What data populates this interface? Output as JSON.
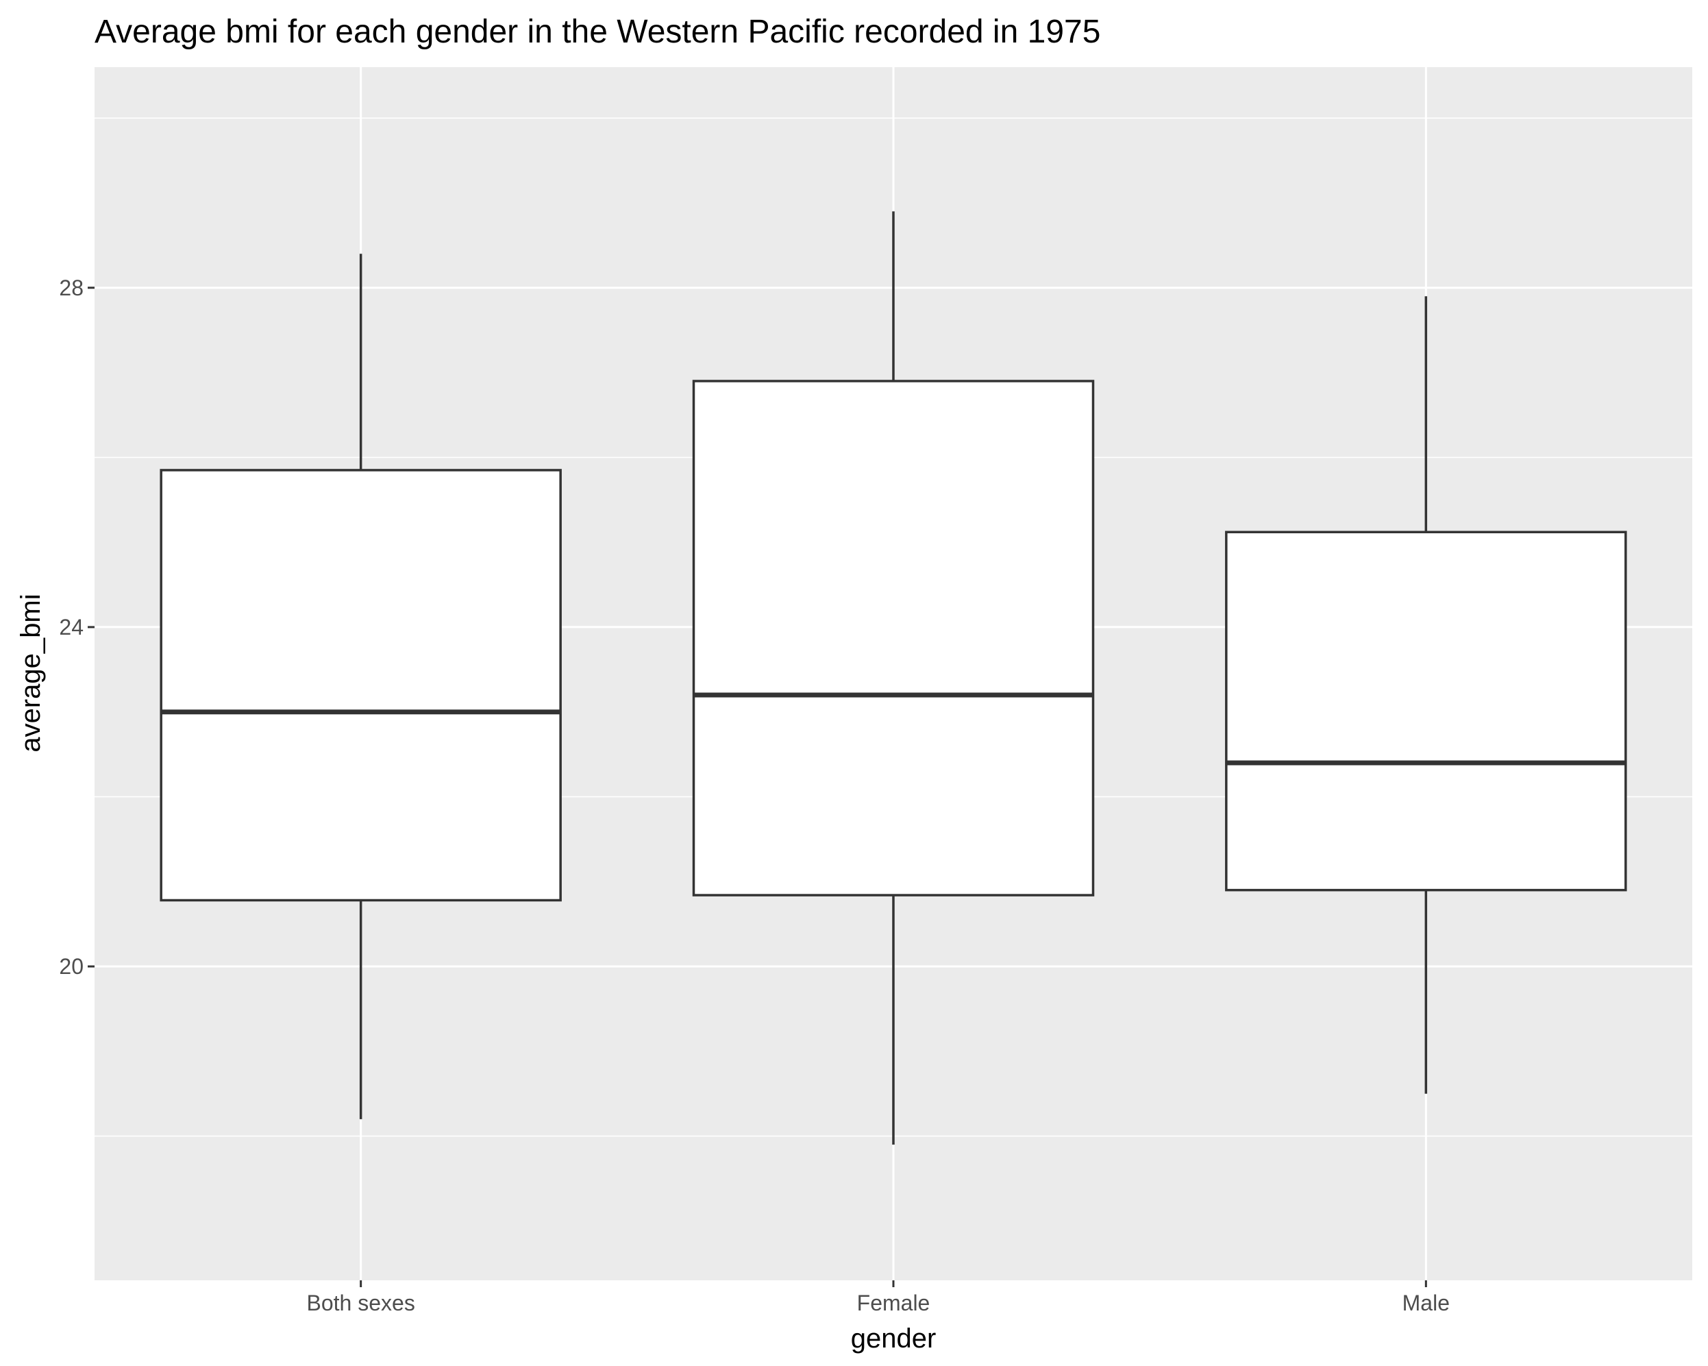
{
  "chart_data": {
    "type": "boxplot",
    "title": "Average bmi for each gender in the Western Pacific recorded in 1975",
    "xlabel": "gender",
    "ylabel": "average_bmi",
    "ylim": [
      16.3,
      30.6
    ],
    "y_ticks": [
      20,
      24,
      28
    ],
    "grid": true,
    "categories": [
      "Both sexes",
      "Female",
      "Male"
    ],
    "boxes": [
      {
        "category": "Both sexes",
        "lower_whisker": 18.2,
        "q1": 20.78,
        "median": 23.0,
        "q3": 25.85,
        "upper_whisker": 28.4
      },
      {
        "category": "Female",
        "lower_whisker": 17.9,
        "q1": 20.84,
        "median": 23.2,
        "q3": 26.9,
        "upper_whisker": 28.9
      },
      {
        "category": "Male",
        "lower_whisker": 18.5,
        "q1": 20.9,
        "median": 22.4,
        "q3": 25.12,
        "upper_whisker": 27.9
      }
    ]
  },
  "colors": {
    "panel_background": "#ebebeb",
    "grid_major": "#ffffff",
    "box_fill": "#ffffff",
    "box_stroke": "#333333",
    "tick_color": "#333333"
  }
}
